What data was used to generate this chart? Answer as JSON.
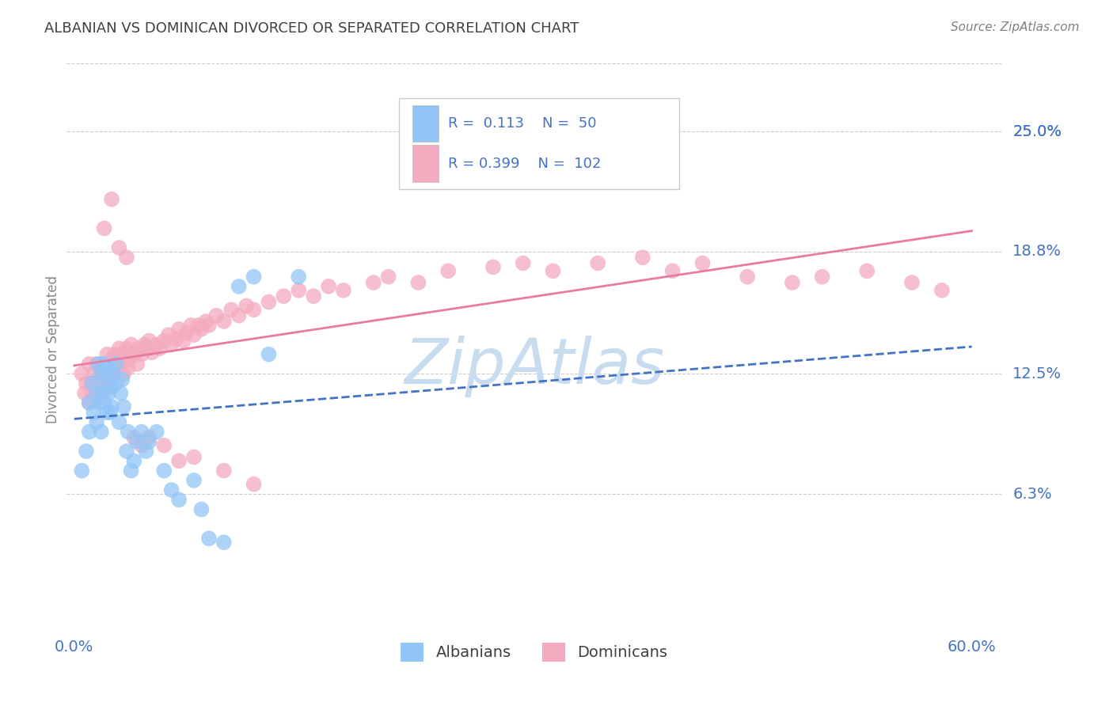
{
  "title": "ALBANIAN VS DOMINICAN DIVORCED OR SEPARATED CORRELATION CHART",
  "source_text": "Source: ZipAtlas.com",
  "ylabel": "Divorced or Separated",
  "x_ticks_vals": [
    0.0,
    0.6
  ],
  "x_ticks_labels": [
    "0.0%",
    "60.0%"
  ],
  "y_ticks_vals": [
    0.063,
    0.125,
    0.188,
    0.25
  ],
  "y_ticks_labels": [
    "6.3%",
    "12.5%",
    "18.8%",
    "25.0%"
  ],
  "xlim": [
    -0.005,
    0.62
  ],
  "ylim": [
    -0.01,
    0.285
  ],
  "r_albanian": 0.113,
  "n_albanian": 50,
  "r_dominican": 0.399,
  "n_dominican": 102,
  "albanian_color": "#92C5F7",
  "dominican_color": "#F4AABF",
  "trendline_albanian_color": "#4472C4",
  "trendline_dominican_color": "#E87CA0",
  "title_color": "#404040",
  "axis_label_color": "#4472C4",
  "source_color": "#808080",
  "watermark_color": "#C8DCF0",
  "background_color": "#FFFFFF",
  "grid_color": "#CCCCCC",
  "legend_box_color": "#FFFFFF",
  "legend_border_color": "#CCCCCC",
  "albanian_x": [
    0.005,
    0.008,
    0.01,
    0.01,
    0.012,
    0.013,
    0.015,
    0.015,
    0.016,
    0.017,
    0.018,
    0.018,
    0.019,
    0.02,
    0.02,
    0.021,
    0.022,
    0.022,
    0.023,
    0.023,
    0.024,
    0.025,
    0.025,
    0.026,
    0.028,
    0.028,
    0.03,
    0.031,
    0.032,
    0.033,
    0.035,
    0.036,
    0.038,
    0.04,
    0.042,
    0.045,
    0.048,
    0.05,
    0.055,
    0.06,
    0.065,
    0.07,
    0.08,
    0.085,
    0.09,
    0.1,
    0.11,
    0.12,
    0.13,
    0.15
  ],
  "albanian_y": [
    0.075,
    0.085,
    0.11,
    0.095,
    0.12,
    0.105,
    0.115,
    0.1,
    0.13,
    0.11,
    0.125,
    0.095,
    0.115,
    0.13,
    0.11,
    0.125,
    0.12,
    0.105,
    0.115,
    0.128,
    0.105,
    0.118,
    0.108,
    0.125,
    0.12,
    0.13,
    0.1,
    0.115,
    0.122,
    0.108,
    0.085,
    0.095,
    0.075,
    0.08,
    0.09,
    0.095,
    0.085,
    0.09,
    0.095,
    0.075,
    0.065,
    0.06,
    0.07,
    0.055,
    0.04,
    0.038,
    0.17,
    0.175,
    0.135,
    0.175
  ],
  "dominican_x": [
    0.005,
    0.007,
    0.008,
    0.01,
    0.01,
    0.011,
    0.012,
    0.013,
    0.014,
    0.015,
    0.015,
    0.016,
    0.017,
    0.018,
    0.018,
    0.019,
    0.02,
    0.02,
    0.021,
    0.022,
    0.022,
    0.023,
    0.024,
    0.025,
    0.025,
    0.026,
    0.027,
    0.028,
    0.029,
    0.03,
    0.031,
    0.032,
    0.033,
    0.034,
    0.035,
    0.036,
    0.037,
    0.038,
    0.04,
    0.042,
    0.043,
    0.045,
    0.047,
    0.049,
    0.05,
    0.052,
    0.055,
    0.057,
    0.06,
    0.063,
    0.065,
    0.068,
    0.07,
    0.073,
    0.075,
    0.078,
    0.08,
    0.083,
    0.085,
    0.088,
    0.09,
    0.095,
    0.1,
    0.105,
    0.11,
    0.115,
    0.12,
    0.13,
    0.14,
    0.15,
    0.16,
    0.17,
    0.18,
    0.2,
    0.21,
    0.23,
    0.25,
    0.28,
    0.3,
    0.32,
    0.35,
    0.38,
    0.4,
    0.42,
    0.45,
    0.48,
    0.5,
    0.53,
    0.56,
    0.58,
    0.02,
    0.025,
    0.03,
    0.035,
    0.04,
    0.045,
    0.05,
    0.06,
    0.07,
    0.08,
    0.1,
    0.12
  ],
  "dominican_y": [
    0.125,
    0.115,
    0.12,
    0.11,
    0.13,
    0.12,
    0.115,
    0.125,
    0.118,
    0.112,
    0.13,
    0.122,
    0.118,
    0.126,
    0.116,
    0.12,
    0.13,
    0.118,
    0.125,
    0.12,
    0.135,
    0.128,
    0.122,
    0.132,
    0.125,
    0.13,
    0.135,
    0.128,
    0.132,
    0.138,
    0.13,
    0.135,
    0.125,
    0.132,
    0.138,
    0.128,
    0.133,
    0.14,
    0.135,
    0.13,
    0.138,
    0.135,
    0.14,
    0.138,
    0.142,
    0.136,
    0.14,
    0.138,
    0.142,
    0.145,
    0.14,
    0.143,
    0.148,
    0.142,
    0.146,
    0.15,
    0.145,
    0.15,
    0.148,
    0.152,
    0.15,
    0.155,
    0.152,
    0.158,
    0.155,
    0.16,
    0.158,
    0.162,
    0.165,
    0.168,
    0.165,
    0.17,
    0.168,
    0.172,
    0.175,
    0.172,
    0.178,
    0.18,
    0.182,
    0.178,
    0.182,
    0.185,
    0.178,
    0.182,
    0.175,
    0.172,
    0.175,
    0.178,
    0.172,
    0.168,
    0.2,
    0.215,
    0.19,
    0.185,
    0.092,
    0.088,
    0.092,
    0.088,
    0.08,
    0.082,
    0.075,
    0.068
  ]
}
